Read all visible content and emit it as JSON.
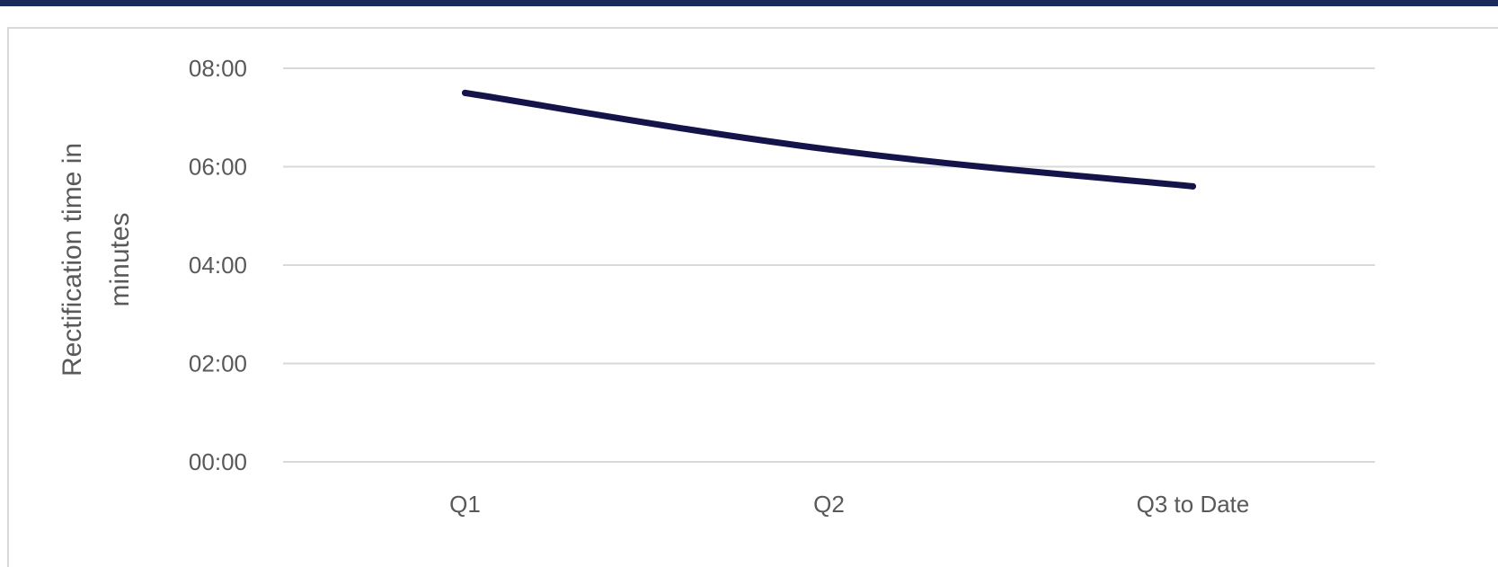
{
  "chart_data": {
    "type": "line",
    "categories": [
      "Q1",
      "Q2",
      "Q3 to Date"
    ],
    "series": [
      {
        "values": [
          7.5,
          6.35,
          5.6
        ]
      }
    ],
    "y_ticks": [
      "00:00",
      "02:00",
      "04:00",
      "06:00",
      "08:00"
    ],
    "ylim": [
      0,
      8
    ],
    "ylabel_lines": [
      "Rectification time in",
      "minutes"
    ],
    "xlabel": "",
    "grid": true,
    "legend": "none",
    "colors": {
      "line": "#14134a",
      "grid": "#d9d9d9",
      "text": "#595959",
      "top_bar": "#1e2a5a"
    }
  }
}
